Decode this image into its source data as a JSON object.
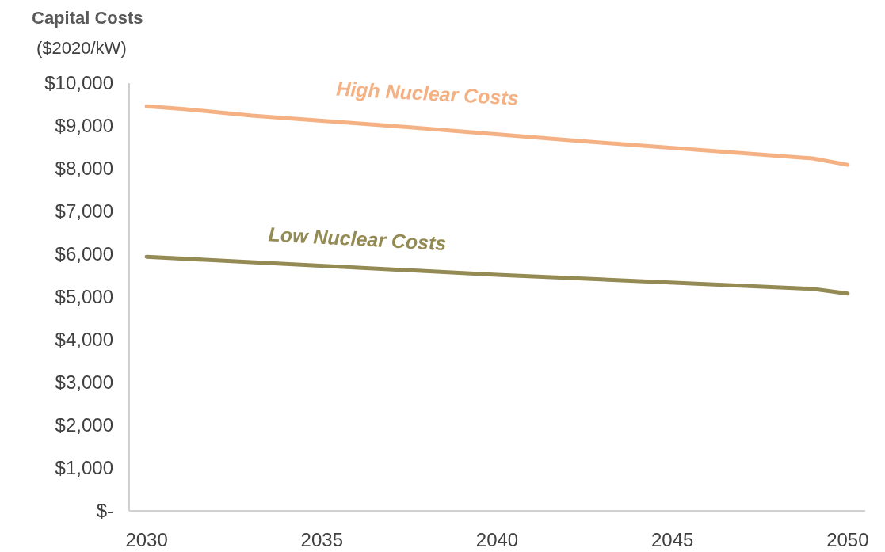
{
  "chart_data": {
    "type": "line",
    "title": "Capital Costs",
    "ylabel": "($2020/kW)",
    "xlim": [
      2029.5,
      2050.5
    ],
    "xticks": [
      2030,
      2035,
      2040,
      2045,
      2050
    ],
    "ylim": [
      0,
      10000
    ],
    "yticks": [
      {
        "value": 0,
        "label": "$-"
      },
      {
        "value": 1000,
        "label": "$1,000"
      },
      {
        "value": 2000,
        "label": "$2,000"
      },
      {
        "value": 3000,
        "label": "$3,000"
      },
      {
        "value": 4000,
        "label": "$4,000"
      },
      {
        "value": 5000,
        "label": "$5,000"
      },
      {
        "value": 6000,
        "label": "$6,000"
      },
      {
        "value": 7000,
        "label": "$7,000"
      },
      {
        "value": 8000,
        "label": "$8,000"
      },
      {
        "value": 9000,
        "label": "$9,000"
      },
      {
        "value": 10000,
        "label": "$10,000"
      }
    ],
    "series": [
      {
        "name": "High Nuclear Costs",
        "color": "#f4b183",
        "x": [
          2030,
          2031,
          2033,
          2037,
          2042,
          2049,
          2050
        ],
        "values": [
          9460,
          9400,
          9240,
          9000,
          8670,
          8240,
          8090
        ]
      },
      {
        "name": "Low Nuclear Costs",
        "color": "#948a54",
        "x": [
          2030,
          2040,
          2049,
          2050
        ],
        "values": [
          5940,
          5520,
          5190,
          5080
        ]
      }
    ],
    "grid": false
  }
}
